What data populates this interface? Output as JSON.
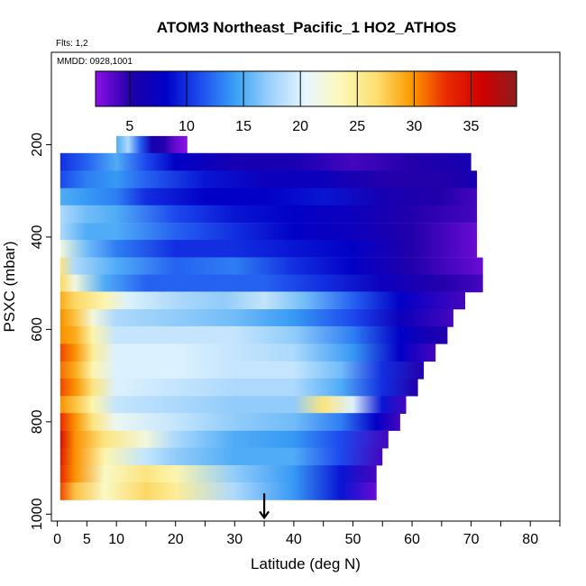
{
  "chart_data": {
    "type": "heatmap",
    "title": "ATOM3 Northeast_Pacific_1 HO2_ATHOS",
    "annotations": [
      "Flts: 1,2",
      "MMDD: 0928,1001"
    ],
    "xlabel": "Latitude (deg N)",
    "ylabel": "PSXC (mbar)",
    "xlim": [
      -1,
      85
    ],
    "ylim": [
      1015,
      0
    ],
    "y_reversed": true,
    "grid": false,
    "x_ticks": [
      0,
      5,
      10,
      20,
      30,
      40,
      50,
      60,
      70,
      80
    ],
    "x_minor_ticks": [
      15,
      25,
      35,
      45,
      55,
      65,
      75,
      85
    ],
    "y_ticks": [
      200,
      400,
      600,
      800,
      1000
    ],
    "colorbar": {
      "placement": "top inside plot",
      "range": [
        2,
        39
      ],
      "ticks": [
        5,
        10,
        15,
        20,
        25,
        30,
        35
      ],
      "colors": [
        "#8b10e8",
        "#1f00a8",
        "#0000c8",
        "#1e4ef0",
        "#3aa2f5",
        "#9fd2fb",
        "#e8f7ff",
        "#fdf8b8",
        "#fce070",
        "#fb9a00",
        "#ea2a00",
        "#d00000",
        "#8e1e1e"
      ]
    },
    "legend": "none",
    "arrow_marker": {
      "x": 35,
      "direction": "down",
      "y_from": 955,
      "y_to": 1008
    },
    "rows": [
      {
        "p": 200,
        "x0": 10,
        "x1": 22,
        "cols": [
          [
            10,
            15
          ],
          [
            12,
            18
          ],
          [
            14,
            12
          ],
          [
            16,
            6
          ],
          [
            18,
            5
          ],
          [
            20,
            3
          ],
          [
            22,
            2
          ]
        ]
      },
      {
        "p": 237,
        "x0": 0.5,
        "x1": 70,
        "cols": [
          [
            0.5,
            10
          ],
          [
            5,
            12
          ],
          [
            10,
            15
          ],
          [
            15,
            11
          ],
          [
            20,
            8
          ],
          [
            30,
            6
          ],
          [
            40,
            6
          ],
          [
            50,
            4
          ],
          [
            60,
            5
          ],
          [
            70,
            6
          ]
        ]
      },
      {
        "p": 275,
        "x0": 0.5,
        "x1": 71,
        "cols": [
          [
            0.5,
            11
          ],
          [
            5,
            13
          ],
          [
            10,
            14
          ],
          [
            15,
            12
          ],
          [
            25,
            9
          ],
          [
            35,
            7
          ],
          [
            45,
            7
          ],
          [
            55,
            5
          ],
          [
            65,
            5
          ],
          [
            71,
            6
          ]
        ]
      },
      {
        "p": 313,
        "x0": 0.5,
        "x1": 71,
        "cols": [
          [
            0.5,
            15
          ],
          [
            5,
            14
          ],
          [
            10,
            13
          ],
          [
            15,
            10
          ],
          [
            25,
            8
          ],
          [
            35,
            8
          ],
          [
            45,
            9
          ],
          [
            55,
            6
          ],
          [
            65,
            5
          ],
          [
            71,
            4
          ]
        ]
      },
      {
        "p": 350,
        "x0": 0.5,
        "x1": 71,
        "cols": [
          [
            0.5,
            18
          ],
          [
            5,
            16
          ],
          [
            10,
            15
          ],
          [
            20,
            11
          ],
          [
            30,
            9
          ],
          [
            40,
            8
          ],
          [
            50,
            7
          ],
          [
            60,
            5
          ],
          [
            71,
            4
          ]
        ]
      },
      {
        "p": 388,
        "x0": 0.5,
        "x1": 71,
        "cols": [
          [
            0.5,
            18
          ],
          [
            5,
            15
          ],
          [
            10,
            15
          ],
          [
            20,
            12
          ],
          [
            30,
            10
          ],
          [
            40,
            8
          ],
          [
            50,
            7
          ],
          [
            60,
            5
          ],
          [
            71,
            3
          ]
        ]
      },
      {
        "p": 425,
        "x0": 0.5,
        "x1": 71,
        "cols": [
          [
            0.5,
            22
          ],
          [
            5,
            16
          ],
          [
            10,
            13
          ],
          [
            20,
            10
          ],
          [
            30,
            10
          ],
          [
            40,
            9
          ],
          [
            50,
            8
          ],
          [
            60,
            5
          ],
          [
            71,
            3
          ]
        ]
      },
      {
        "p": 463,
        "x0": 0.5,
        "x1": 72,
        "cols": [
          [
            0.5,
            26
          ],
          [
            3,
            18
          ],
          [
            10,
            15
          ],
          [
            20,
            12
          ],
          [
            30,
            13
          ],
          [
            40,
            10
          ],
          [
            50,
            8
          ],
          [
            60,
            5
          ],
          [
            72,
            3
          ]
        ]
      },
      {
        "p": 500,
        "x0": 0.5,
        "x1": 72,
        "cols": [
          [
            0.5,
            27
          ],
          [
            3,
            22
          ],
          [
            8,
            15
          ],
          [
            15,
            12
          ],
          [
            25,
            12
          ],
          [
            35,
            12
          ],
          [
            45,
            10
          ],
          [
            55,
            7
          ],
          [
            65,
            5
          ],
          [
            72,
            4
          ]
        ]
      },
      {
        "p": 537,
        "x0": 0.5,
        "x1": 69,
        "cols": [
          [
            0.5,
            29
          ],
          [
            3,
            27
          ],
          [
            8,
            24
          ],
          [
            12,
            20
          ],
          [
            20,
            18
          ],
          [
            28,
            17
          ],
          [
            35,
            19
          ],
          [
            42,
            16
          ],
          [
            50,
            12
          ],
          [
            58,
            8
          ],
          [
            69,
            4
          ]
        ]
      },
      {
        "p": 575,
        "x0": 0.5,
        "x1": 67,
        "cols": [
          [
            0.5,
            30
          ],
          [
            3,
            28
          ],
          [
            6,
            22
          ],
          [
            10,
            18
          ],
          [
            20,
            17
          ],
          [
            30,
            16
          ],
          [
            40,
            14
          ],
          [
            50,
            11
          ],
          [
            58,
            7
          ],
          [
            67,
            4
          ]
        ]
      },
      {
        "p": 612,
        "x0": 0.5,
        "x1": 66,
        "cols": [
          [
            0.5,
            30
          ],
          [
            3,
            29
          ],
          [
            6,
            24
          ],
          [
            10,
            19
          ],
          [
            20,
            19
          ],
          [
            30,
            19
          ],
          [
            40,
            17
          ],
          [
            50,
            13
          ],
          [
            58,
            8
          ],
          [
            66,
            5
          ]
        ]
      },
      {
        "p": 650,
        "x0": 0.5,
        "x1": 64,
        "cols": [
          [
            0.5,
            32
          ],
          [
            3,
            30
          ],
          [
            6,
            25
          ],
          [
            10,
            20
          ],
          [
            20,
            20
          ],
          [
            30,
            19
          ],
          [
            40,
            18
          ],
          [
            50,
            14
          ],
          [
            58,
            8
          ],
          [
            64,
            4
          ]
        ]
      },
      {
        "p": 688,
        "x0": 0.5,
        "x1": 62,
        "cols": [
          [
            0.5,
            31
          ],
          [
            3,
            29
          ],
          [
            6,
            24
          ],
          [
            10,
            20
          ],
          [
            20,
            20
          ],
          [
            30,
            19
          ],
          [
            40,
            19
          ],
          [
            48,
            16
          ],
          [
            55,
            10
          ],
          [
            62,
            5
          ]
        ]
      },
      {
        "p": 725,
        "x0": 0.5,
        "x1": 61,
        "cols": [
          [
            0.5,
            32
          ],
          [
            3,
            30
          ],
          [
            6,
            26
          ],
          [
            10,
            20
          ],
          [
            20,
            19
          ],
          [
            30,
            18
          ],
          [
            40,
            18
          ],
          [
            48,
            15
          ],
          [
            55,
            10
          ],
          [
            61,
            5
          ]
        ]
      },
      {
        "p": 763,
        "x0": 0.5,
        "x1": 59,
        "cols": [
          [
            0.5,
            30
          ],
          [
            3,
            28
          ],
          [
            6,
            24
          ],
          [
            10,
            19
          ],
          [
            20,
            18
          ],
          [
            30,
            17
          ],
          [
            40,
            17
          ],
          [
            45,
            26
          ],
          [
            50,
            20
          ],
          [
            55,
            9
          ],
          [
            59,
            4
          ]
        ]
      },
      {
        "p": 800,
        "x0": 0.5,
        "x1": 58,
        "cols": [
          [
            0.5,
            33
          ],
          [
            3,
            30
          ],
          [
            6,
            26
          ],
          [
            10,
            21
          ],
          [
            20,
            19
          ],
          [
            30,
            17
          ],
          [
            40,
            16
          ],
          [
            48,
            13
          ],
          [
            54,
            8
          ],
          [
            58,
            4
          ]
        ]
      },
      {
        "p": 838,
        "x0": 0.5,
        "x1": 56,
        "cols": [
          [
            0.5,
            35
          ],
          [
            3,
            30
          ],
          [
            8,
            26
          ],
          [
            15,
            22
          ],
          [
            20,
            18
          ],
          [
            30,
            15
          ],
          [
            40,
            14
          ],
          [
            48,
            11
          ],
          [
            56,
            4
          ]
        ]
      },
      {
        "p": 875,
        "x0": 0.5,
        "x1": 55,
        "cols": [
          [
            0.5,
            34
          ],
          [
            3,
            30
          ],
          [
            8,
            24
          ],
          [
            15,
            19
          ],
          [
            20,
            17
          ],
          [
            30,
            15
          ],
          [
            40,
            15
          ],
          [
            48,
            11
          ],
          [
            55,
            4
          ]
        ]
      },
      {
        "p": 913,
        "x0": 0.5,
        "x1": 54,
        "cols": [
          [
            0.5,
            33
          ],
          [
            3,
            30
          ],
          [
            8,
            23
          ],
          [
            15,
            26
          ],
          [
            20,
            24
          ],
          [
            30,
            17
          ],
          [
            40,
            14
          ],
          [
            48,
            9
          ],
          [
            54,
            4
          ]
        ]
      },
      {
        "p": 950,
        "x0": 0.5,
        "x1": 54,
        "cols": [
          [
            0.5,
            32
          ],
          [
            3,
            28
          ],
          [
            8,
            23
          ],
          [
            15,
            27
          ],
          [
            20,
            25
          ],
          [
            30,
            18
          ],
          [
            40,
            14
          ],
          [
            48,
            9
          ],
          [
            54,
            3
          ]
        ]
      }
    ]
  }
}
